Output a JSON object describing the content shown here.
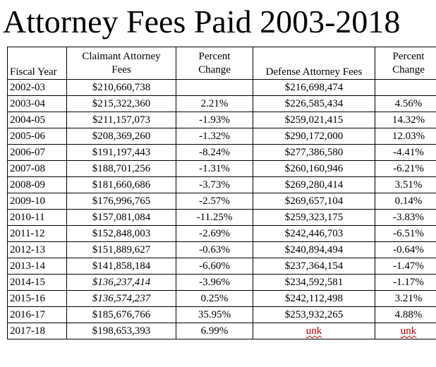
{
  "title": "Attorney Fees Paid 2003-2018",
  "headers": {
    "fiscal_year": "Fiscal Year",
    "claimant_fees_line1": "Claimant Attorney",
    "claimant_fees_line2": "Fees",
    "percent_change_line1": "Percent",
    "percent_change_line2": "Change",
    "defense_fees": "Defense Attorney Fees",
    "percent_change2_line1": "Percent",
    "percent_change2_line2": "Change"
  },
  "rows": [
    {
      "year": "2002-03",
      "claimant": "$210,660,738",
      "claimant_pct": "",
      "defense": "$216,698,474",
      "defense_pct": ""
    },
    {
      "year": "2003-04",
      "claimant": "$215,322,360",
      "claimant_pct": "2.21%",
      "defense": "$226,585,434",
      "defense_pct": "4.56%"
    },
    {
      "year": "2004-05",
      "claimant": "$211,157,073",
      "claimant_pct": "-1.93%",
      "defense": "$259,021,415",
      "defense_pct": "14.32%"
    },
    {
      "year": "2005-06",
      "claimant": "$208,369,260",
      "claimant_pct": "-1.32%",
      "defense": "$290,172,000",
      "defense_pct": "12.03%"
    },
    {
      "year": "2006-07",
      "claimant": "$191,197,443",
      "claimant_pct": "-8.24%",
      "defense": "$277,386,580",
      "defense_pct": "-4.41%"
    },
    {
      "year": "2007-08",
      "claimant": "$188,701,256",
      "claimant_pct": "-1.31%",
      "defense": "$260,160,946",
      "defense_pct": "-6.21%"
    },
    {
      "year": "2008-09",
      "claimant": "$181,660,686",
      "claimant_pct": "-3.73%",
      "defense": "$269,280,414",
      "defense_pct": "3.51%"
    },
    {
      "year": "2009-10",
      "claimant": "$176,996,765",
      "claimant_pct": "-2.57%",
      "defense": "$269,657,104",
      "defense_pct": "0.14%"
    },
    {
      "year": "2010-11",
      "claimant": "$157,081,084",
      "claimant_pct": "-11.25%",
      "defense": "$259,323,175",
      "defense_pct": "-3.83%"
    },
    {
      "year": "2011-12",
      "claimant": "$152,848,003",
      "claimant_pct": "-2.69%",
      "defense": "$242,446,703",
      "defense_pct": "-6.51%"
    },
    {
      "year": "2012-13",
      "claimant": "$151,889,627",
      "claimant_pct": "-0.63%",
      "defense": "$240,894,494",
      "defense_pct": "-0.64%"
    },
    {
      "year": "2013-14",
      "claimant": "$141,858,184",
      "claimant_pct": "-6.60%",
      "defense": "$237,364,154",
      "defense_pct": "-1.47%"
    },
    {
      "year": "2014-15",
      "claimant": "$136,237,414",
      "claimant_italic": true,
      "claimant_pct": "-3.96%",
      "defense": "$234,592,581",
      "defense_pct": "-1.17%"
    },
    {
      "year": "2015-16",
      "claimant": "$136,574,237",
      "claimant_italic": true,
      "claimant_pct": "0.25%",
      "defense": "$242,112,498",
      "defense_pct": "3.21%"
    },
    {
      "year": "2016-17",
      "claimant": "$185,676,766",
      "claimant_pct": "35.95%",
      "defense": "$253,932,265",
      "defense_pct": "4.88%"
    },
    {
      "year": "2017-18",
      "claimant": "$198,653,393",
      "claimant_pct": "6.99%",
      "defense": "unk",
      "defense_unk": true,
      "defense_pct": "unk",
      "defense_pct_unk": true
    }
  ],
  "colors": {
    "text": "#000000",
    "border": "#000000",
    "unknown_marker": "#c00000",
    "background": "#ffffff"
  }
}
